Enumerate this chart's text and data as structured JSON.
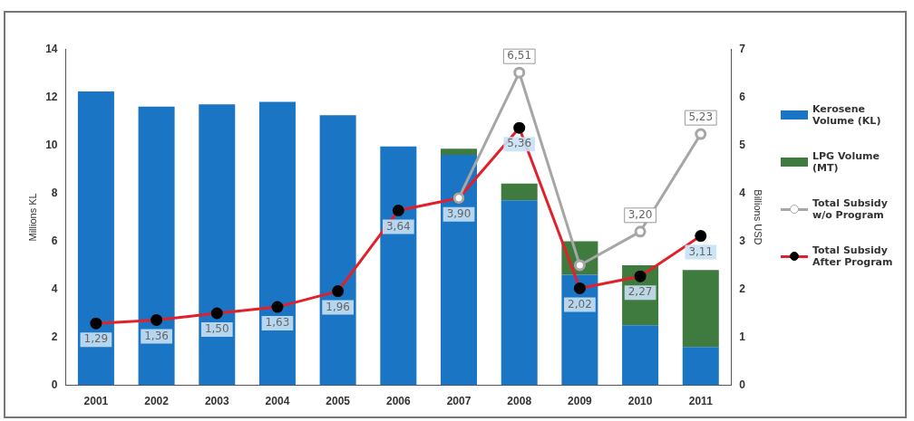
{
  "chart_data": {
    "type": "bar",
    "stacked": true,
    "categories": [
      "2001",
      "2002",
      "2003",
      "2004",
      "2005",
      "2006",
      "2007",
      "2008",
      "2009",
      "2010",
      "2011"
    ],
    "ylabel": "Millions KL",
    "y2label": "Billions USD",
    "ylim": [
      0,
      14
    ],
    "yticks": [
      0,
      2,
      4,
      6,
      8,
      10,
      12,
      14
    ],
    "y2lim": [
      0,
      7
    ],
    "y2ticks": [
      0,
      1,
      2,
      3,
      4,
      5,
      6,
      7
    ],
    "grid": false,
    "legend": "right",
    "series": [
      {
        "name": "Kerosene Volume (KL)",
        "color": "#1a75c4",
        "values": [
          12.24,
          11.6,
          11.7,
          11.8,
          11.25,
          9.95,
          9.6,
          7.7,
          4.6,
          2.5,
          1.6
        ]
      },
      {
        "name": "LPG Volume (MT)",
        "color": "#3f7a3f",
        "values": [
          0,
          0,
          0,
          0,
          0,
          0,
          0.25,
          0.7,
          1.4,
          2.5,
          3.2
        ]
      },
      {
        "name": "Total Subsidy w/o Program",
        "type": "line",
        "axis": "y2",
        "color": "#a6a6a6",
        "marker": "circle",
        "values": [
          null,
          null,
          null,
          null,
          null,
          null,
          3.9,
          6.51,
          2.5,
          3.2,
          5.23
        ],
        "value_labels": [
          null,
          null,
          null,
          null,
          null,
          null,
          null,
          "6,51",
          null,
          "3,20",
          "5,23"
        ]
      },
      {
        "name": "Total Subsidy After Program",
        "type": "line",
        "axis": "y2",
        "color": "#e3202a",
        "marker": "circle",
        "values": [
          1.29,
          1.36,
          1.5,
          1.63,
          1.96,
          3.64,
          3.9,
          5.36,
          2.02,
          2.27,
          3.11
        ],
        "value_labels": [
          "1,29",
          "1,36",
          "1,50",
          "1,63",
          "1,96",
          "3,64",
          "3,90",
          "5,36",
          "2,02",
          "2,27",
          "3,11"
        ]
      }
    ]
  }
}
